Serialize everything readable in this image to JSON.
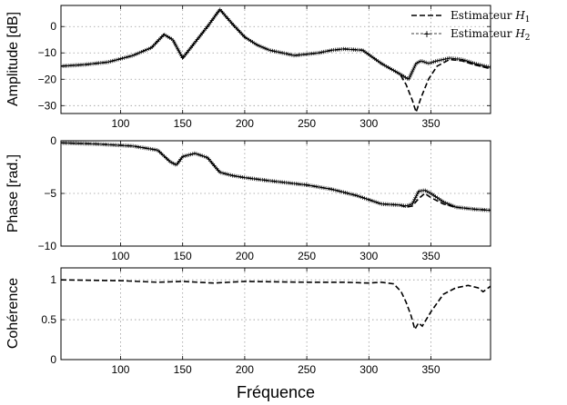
{
  "chart_data": [
    {
      "type": "line",
      "ylabel": "Amplitude [dB]",
      "xlim": [
        52,
        398
      ],
      "ylim": [
        -33,
        8
      ],
      "xticks": [
        100,
        150,
        200,
        250,
        300,
        350
      ],
      "yticks": [
        0,
        -10,
        -20,
        -30
      ],
      "grid": true,
      "legend_position": "top-right",
      "series": [
        {
          "name": "Estimateur H1",
          "style": "dashed",
          "x": [
            52,
            70,
            90,
            110,
            125,
            135,
            142,
            150,
            160,
            170,
            180,
            190,
            200,
            210,
            220,
            240,
            260,
            270,
            280,
            295,
            310,
            325,
            330,
            335,
            338,
            342,
            348,
            355,
            365,
            375,
            385,
            398
          ],
          "y": [
            -15,
            -14.5,
            -13.5,
            -11,
            -8,
            -3,
            -5,
            -12,
            -6,
            0,
            6.5,
            1,
            -4,
            -7,
            -9,
            -11,
            -10,
            -9,
            -8.5,
            -9,
            -14,
            -18,
            -22,
            -28,
            -32.5,
            -27,
            -20,
            -15,
            -12.5,
            -13,
            -14.5,
            -16
          ]
        },
        {
          "name": "Estimateur H2",
          "style": "solid-plus",
          "x": [
            52,
            70,
            90,
            110,
            125,
            135,
            142,
            150,
            160,
            170,
            180,
            190,
            200,
            210,
            220,
            240,
            260,
            270,
            280,
            295,
            310,
            325,
            332,
            335,
            338,
            342,
            348,
            355,
            365,
            375,
            385,
            398
          ],
          "y": [
            -15,
            -14.5,
            -13.5,
            -11,
            -8,
            -3,
            -5,
            -12,
            -6,
            0,
            6.5,
            1,
            -4,
            -7,
            -9,
            -11,
            -10,
            -9,
            -8.5,
            -9,
            -14,
            -18,
            -20,
            -17,
            -14,
            -13,
            -14,
            -13,
            -12,
            -12.5,
            -14,
            -15.5
          ]
        }
      ]
    },
    {
      "type": "line",
      "ylabel": "Phase [rad.]",
      "xlim": [
        52,
        398
      ],
      "ylim": [
        -10,
        0
      ],
      "xticks": [
        100,
        150,
        200,
        250,
        300,
        350
      ],
      "yticks": [
        0,
        -5,
        -10
      ],
      "grid": true,
      "series": [
        {
          "name": "Estimateur H1",
          "style": "dashed",
          "x": [
            52,
            80,
            110,
            130,
            140,
            145,
            150,
            160,
            170,
            180,
            190,
            200,
            220,
            250,
            270,
            290,
            310,
            325,
            330,
            335,
            340,
            345,
            350,
            360,
            370,
            385,
            398
          ],
          "y": [
            -0.2,
            -0.3,
            -0.5,
            -0.9,
            -2.0,
            -2.3,
            -1.5,
            -1.2,
            -1.6,
            -3.0,
            -3.3,
            -3.5,
            -3.8,
            -4.2,
            -4.6,
            -5.2,
            -6.0,
            -6.1,
            -6.3,
            -6.2,
            -5.5,
            -5.0,
            -5.4,
            -6.0,
            -6.3,
            -6.5,
            -6.6
          ]
        },
        {
          "name": "Estimateur H2",
          "style": "solid-plus",
          "x": [
            52,
            80,
            110,
            130,
            140,
            145,
            150,
            160,
            170,
            180,
            190,
            200,
            220,
            250,
            270,
            290,
            310,
            325,
            330,
            335,
            340,
            345,
            350,
            360,
            370,
            385,
            398
          ],
          "y": [
            -0.2,
            -0.3,
            -0.5,
            -0.9,
            -2.0,
            -2.3,
            -1.5,
            -1.2,
            -1.6,
            -3.0,
            -3.3,
            -3.5,
            -3.8,
            -4.2,
            -4.6,
            -5.2,
            -6.0,
            -6.1,
            -6.2,
            -6.0,
            -4.8,
            -4.7,
            -5.0,
            -5.8,
            -6.3,
            -6.5,
            -6.6
          ]
        }
      ]
    },
    {
      "type": "line",
      "ylabel": "Cohérence",
      "xlabel": "Fréquence",
      "xlim": [
        52,
        398
      ],
      "ylim": [
        0,
        1.15
      ],
      "xticks": [
        100,
        150,
        200,
        250,
        300,
        350
      ],
      "yticks": [
        0,
        0.5,
        1
      ],
      "grid": true,
      "series": [
        {
          "name": "Estimateur H1",
          "style": "dashed",
          "x": [
            52,
            100,
            130,
            150,
            175,
            200,
            250,
            280,
            300,
            310,
            320,
            326,
            330,
            334,
            337,
            340,
            343,
            350,
            360,
            370,
            380,
            388,
            392,
            398
          ],
          "y": [
            1.0,
            0.99,
            0.97,
            0.98,
            0.96,
            0.98,
            0.97,
            0.97,
            0.96,
            0.97,
            0.95,
            0.85,
            0.72,
            0.55,
            0.38,
            0.46,
            0.42,
            0.6,
            0.82,
            0.9,
            0.93,
            0.9,
            0.85,
            0.92
          ]
        }
      ]
    }
  ]
}
